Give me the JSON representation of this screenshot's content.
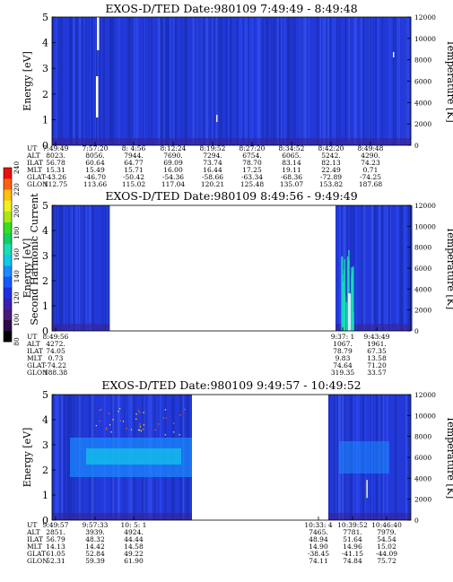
{
  "colorbar": {
    "label": "Second Harmonic Current",
    "ticks": [
      "80",
      "100",
      "120",
      "140",
      "160",
      "180",
      "200",
      "220",
      "240"
    ],
    "colors": [
      "#000000",
      "#2d0a4a",
      "#4a1a7a",
      "#3a1fb0",
      "#1f2fe0",
      "#1858ff",
      "#1a8cff",
      "#13c8e8",
      "#18e0b0",
      "#12d060",
      "#34e020",
      "#a8e812",
      "#f0f020",
      "#ffc010",
      "#ff6010",
      "#e81010"
    ]
  },
  "chart_data": [
    {
      "type": "heatmap",
      "title": "EXOS-D/TED   Date:980109  7:49:49 - 8:49:48",
      "ylabel": "Energy [eV]",
      "ylim": [
        0,
        5
      ],
      "yticks": [
        "0",
        "1",
        "2",
        "3",
        "4",
        "5"
      ],
      "y2label": "Temperature [K]",
      "y2lim": [
        0,
        12000
      ],
      "y2ticks": [
        "0",
        "2000",
        "4000",
        "6000",
        "8000",
        "10000",
        "12000"
      ],
      "row_labels": [
        "UT",
        "ALT",
        "ILAT",
        "MLT",
        "GLAT",
        "GLON"
      ],
      "columns": [
        [
          "7:49:49",
          "8023.",
          "56.78",
          "15.31",
          "-43.26",
          "112.75"
        ],
        [
          "7:57:20",
          "8056.",
          "60.64",
          "15.49",
          "-46.70",
          "113.66"
        ],
        [
          "8: 4:56",
          "7944.",
          "64.77",
          "15.71",
          "-50.42",
          "115.02"
        ],
        [
          "8:12:24",
          "7690.",
          "69.09",
          "16.00",
          "-54.36",
          "117.04"
        ],
        [
          "8:19:52",
          "7294.",
          "73.74",
          "16.44",
          "-58.66",
          "120.21"
        ],
        [
          "8:27:20",
          "6754.",
          "78.70",
          "17.25",
          "-63.34",
          "125.48"
        ],
        [
          "8:34:52",
          "6065.",
          "83.14",
          "19.11",
          "-68.36",
          "135.07"
        ],
        [
          "8:42:20",
          "5242.",
          "82.13",
          "22.49",
          "-72.89",
          "153.82"
        ],
        [
          "8:49:48",
          "4290.",
          "74.23",
          "0.71",
          "-74.25",
          "187.68"
        ]
      ]
    },
    {
      "type": "heatmap",
      "title": "EXOS-D/TED   Date:980109  8:49:56 - 9:49:49",
      "ylabel": "Energy [eV]",
      "ylim": [
        0,
        5
      ],
      "yticks": [
        "0",
        "1",
        "2",
        "3",
        "4",
        "5"
      ],
      "y2label": "Temperature [K]",
      "y2lim": [
        0,
        12000
      ],
      "y2ticks": [
        "0",
        "2000",
        "4000",
        "6000",
        "8000",
        "10000",
        "12000"
      ],
      "row_labels": [
        "UT",
        "ALT",
        "ILAT",
        "MLT",
        "GLAT",
        "GLON"
      ],
      "columns": [
        [
          "8:49:56",
          "4272.",
          "74.05",
          "0.73",
          "-74.22",
          "188.38"
        ],
        [
          "9:37: 1",
          "1067.",
          "78.79",
          "9.83",
          "74.64",
          "319.35"
        ],
        [
          "9:43:49",
          "1961.",
          "67.35",
          "13.58",
          "71.20",
          "33.57"
        ]
      ]
    },
    {
      "type": "heatmap",
      "title": "EXOS-D/TED   Date:980109  9:49:57 - 10:49:52",
      "ylabel": "Energy [eV]",
      "ylim": [
        0,
        5
      ],
      "yticks": [
        "0",
        "1",
        "2",
        "3",
        "4",
        "5"
      ],
      "y2label": "Temperature [K]",
      "y2lim": [
        0,
        12000
      ],
      "y2ticks": [
        "0",
        "2000",
        "4000",
        "6000",
        "8000",
        "10000",
        "12000"
      ],
      "row_labels": [
        "UT",
        "ALT",
        "ILAT",
        "MLT",
        "GLAT",
        "GLON"
      ],
      "columns": [
        [
          "9:49:57",
          "2851.",
          "56.79",
          "14.13",
          "61.05",
          "52.31"
        ],
        [
          "9:57:33",
          "3939.",
          "48.32",
          "14.42",
          "52.84",
          "59.39"
        ],
        [
          "10: 5: 1",
          "4924.",
          "44.44",
          "14.58",
          "49.22",
          "61.90"
        ],
        [
          "10:33: 4",
          "7465.",
          "48.94",
          "14.90",
          "-38.45",
          "74.11"
        ],
        [
          "10:39:52",
          "7781.",
          "51.64",
          "14.96",
          "-41.15",
          "74.84"
        ],
        [
          "10:46:40",
          "7979.",
          "54.54",
          "15.02",
          "-44.09",
          "75.72"
        ]
      ]
    }
  ]
}
